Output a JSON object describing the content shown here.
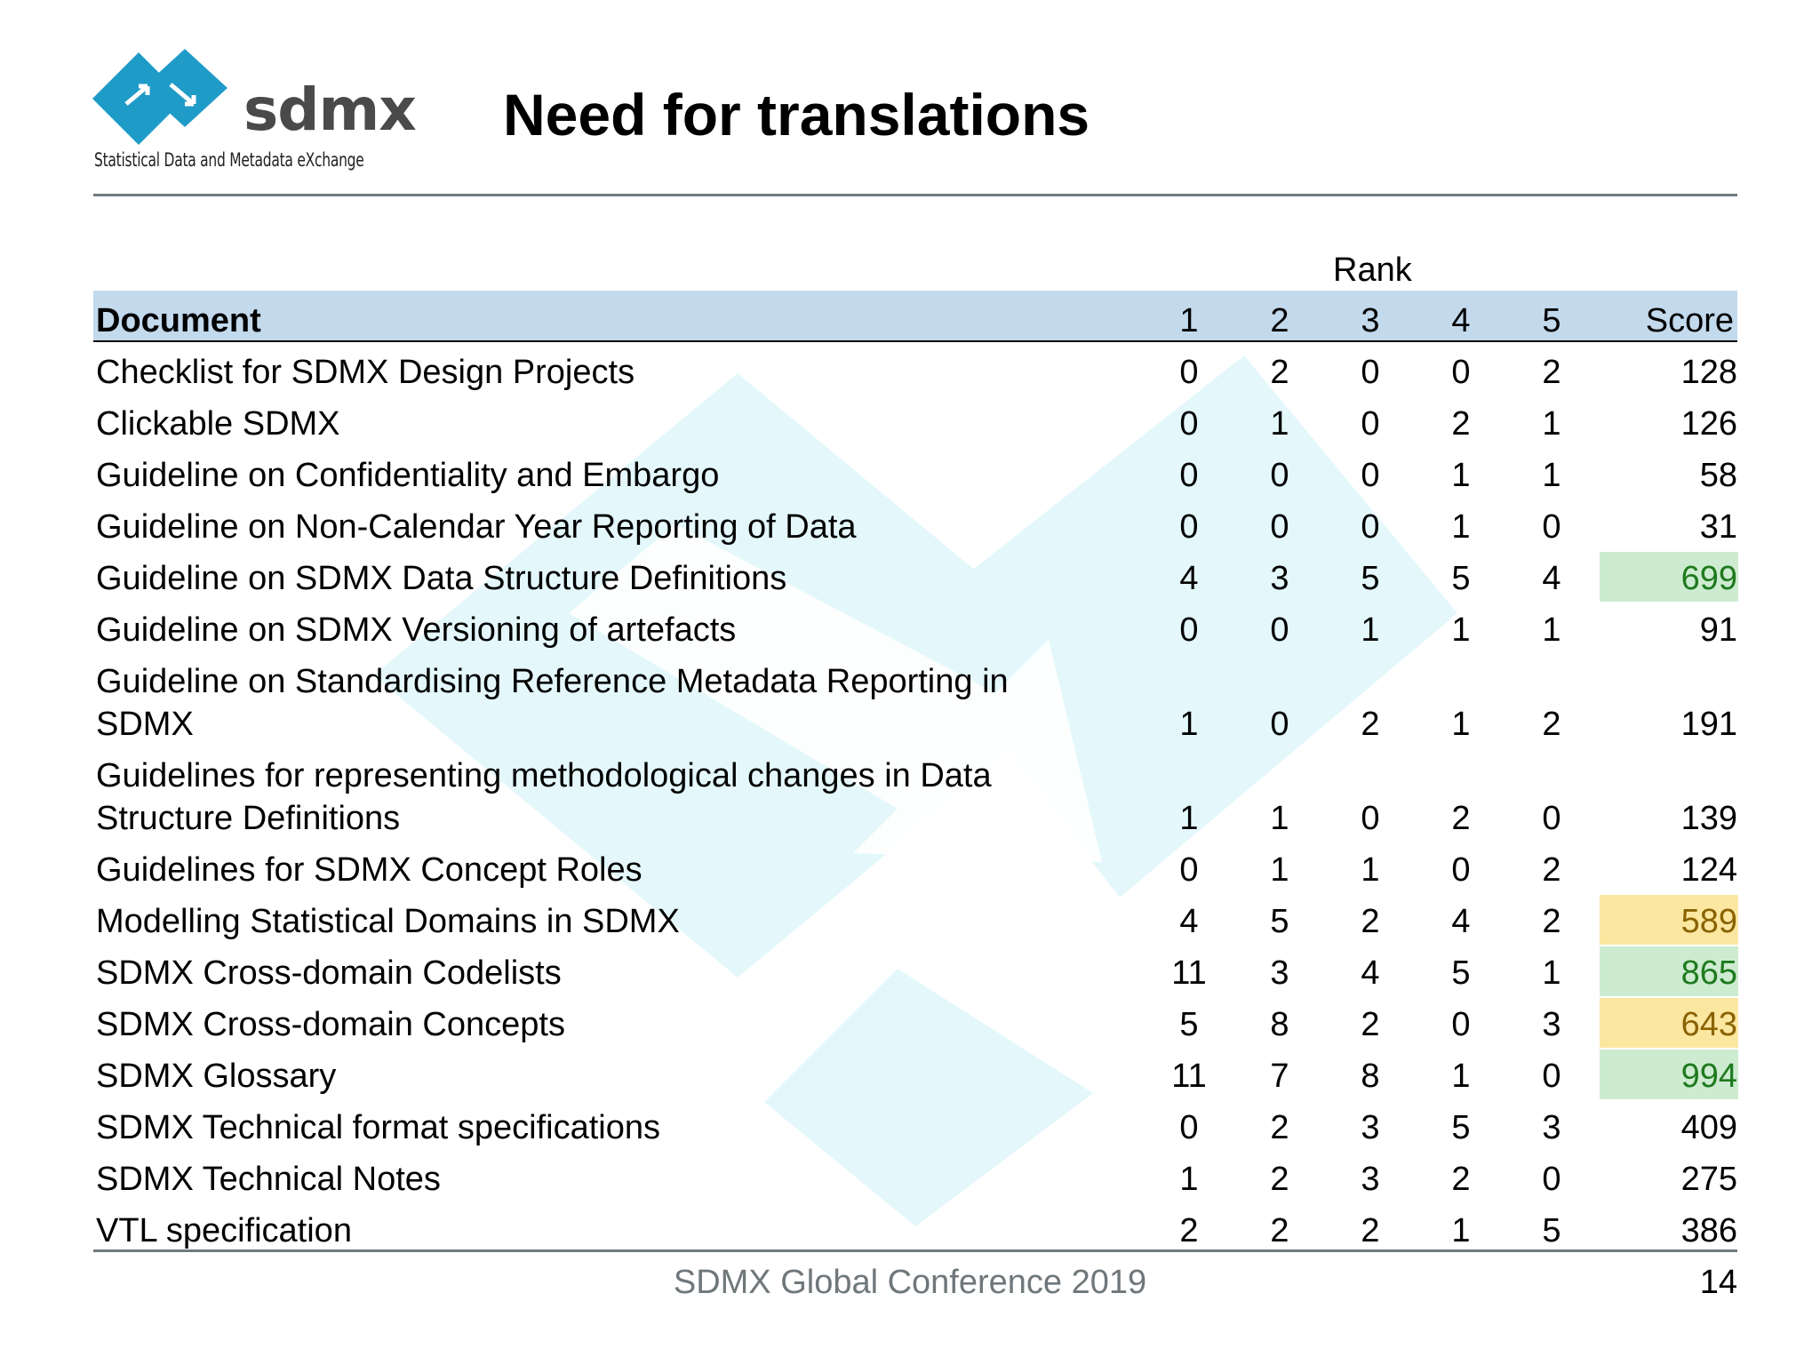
{
  "slide": {
    "title": "Need for translations",
    "logo": {
      "word": "sdmx",
      "tagline": "Statistical Data and Metadata eXchange",
      "icon": "sdmx-diamond-arrows-icon",
      "colors": {
        "diamond": "#1f9bc8",
        "word": "#4a4a4a"
      }
    },
    "table": {
      "rank_label": "Rank",
      "headers": {
        "document": "Document",
        "r1": "1",
        "r2": "2",
        "r3": "3",
        "r4": "4",
        "r5": "5",
        "score": "Score"
      },
      "rows": [
        {
          "document": [
            "Checklist for SDMX Design Projects"
          ],
          "r1": "0",
          "r2": "2",
          "r3": "0",
          "r4": "0",
          "r5": "2",
          "score": "128",
          "highlight": "none"
        },
        {
          "document": [
            "Clickable SDMX"
          ],
          "r1": "0",
          "r2": "1",
          "r3": "0",
          "r4": "2",
          "r5": "1",
          "score": "126",
          "highlight": "none"
        },
        {
          "document": [
            "Guideline on Confidentiality and Embargo"
          ],
          "r1": "0",
          "r2": "0",
          "r3": "0",
          "r4": "1",
          "r5": "1",
          "score": "58",
          "highlight": "none"
        },
        {
          "document": [
            "Guideline on Non-Calendar Year Reporting of Data"
          ],
          "r1": "0",
          "r2": "0",
          "r3": "0",
          "r4": "1",
          "r5": "0",
          "score": "31",
          "highlight": "none"
        },
        {
          "document": [
            "Guideline on SDMX Data Structure Definitions"
          ],
          "r1": "4",
          "r2": "3",
          "r3": "5",
          "r4": "5",
          "r5": "4",
          "score": "699",
          "highlight": "green"
        },
        {
          "document": [
            "Guideline on SDMX Versioning of artefacts"
          ],
          "r1": "0",
          "r2": "0",
          "r3": "1",
          "r4": "1",
          "r5": "1",
          "score": "91",
          "highlight": "none"
        },
        {
          "document": [
            "Guideline on Standardising Reference Metadata Reporting in",
            "SDMX"
          ],
          "r1": "1",
          "r2": "0",
          "r3": "2",
          "r4": "1",
          "r5": "2",
          "score": "191",
          "highlight": "none"
        },
        {
          "document": [
            "Guidelines for representing methodological changes in Data",
            "Structure Definitions"
          ],
          "r1": "1",
          "r2": "1",
          "r3": "0",
          "r4": "2",
          "r5": "0",
          "score": "139",
          "highlight": "none"
        },
        {
          "document": [
            "Guidelines for SDMX Concept Roles"
          ],
          "r1": "0",
          "r2": "1",
          "r3": "1",
          "r4": "0",
          "r5": "2",
          "score": "124",
          "highlight": "none"
        },
        {
          "document": [
            "Modelling Statistical Domains in SDMX"
          ],
          "r1": "4",
          "r2": "5",
          "r3": "2",
          "r4": "4",
          "r5": "2",
          "score": "589",
          "highlight": "yellow"
        },
        {
          "document": [
            "SDMX Cross-domain Codelists"
          ],
          "r1": "11",
          "r2": "3",
          "r3": "4",
          "r4": "5",
          "r5": "1",
          "score": "865",
          "highlight": "green"
        },
        {
          "document": [
            "SDMX Cross-domain Concepts"
          ],
          "r1": "5",
          "r2": "8",
          "r3": "2",
          "r4": "0",
          "r5": "3",
          "score": "643",
          "highlight": "yellow"
        },
        {
          "document": [
            "SDMX Glossary"
          ],
          "r1": "11",
          "r2": "7",
          "r3": "8",
          "r4": "1",
          "r5": "0",
          "score": "994",
          "highlight": "green"
        },
        {
          "document": [
            "SDMX Technical format specifications"
          ],
          "r1": "0",
          "r2": "2",
          "r3": "3",
          "r4": "5",
          "r5": "3",
          "score": "409",
          "highlight": "none"
        },
        {
          "document": [
            "SDMX Technical Notes"
          ],
          "r1": "1",
          "r2": "2",
          "r3": "3",
          "r4": "2",
          "r5": "0",
          "score": "275",
          "highlight": "none"
        },
        {
          "document": [
            "VTL specification"
          ],
          "r1": "2",
          "r2": "2",
          "r3": "2",
          "r4": "1",
          "r5": "5",
          "score": "386",
          "highlight": "none"
        }
      ]
    },
    "footer": "SDMX Global Conference 2019",
    "page_number": "14",
    "colors": {
      "header_band": "#c3d9ec",
      "highlight_green": "#cdebd0",
      "highlight_yellow": "#fbe7a0",
      "rule": "#6f7b80",
      "watermark": "#e3f8fb"
    }
  }
}
